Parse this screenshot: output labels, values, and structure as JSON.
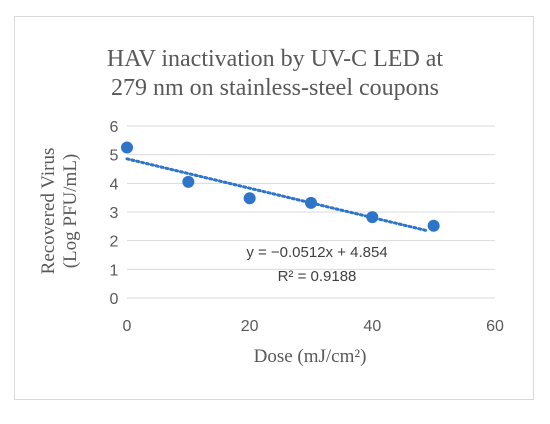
{
  "chart_data": {
    "type": "scatter",
    "title_lines": [
      "HAV inactivation by UV-C LED at",
      "279 nm on stainless-steel coupons"
    ],
    "xlabel": "Dose (mJ/cm²)",
    "ylabel_lines": [
      "Recovered Virus",
      "(Log PFU/mL)"
    ],
    "xlim": [
      0,
      60
    ],
    "ylim": [
      0,
      6
    ],
    "x_ticks": [
      0,
      20,
      40,
      60
    ],
    "y_ticks": [
      0,
      1,
      2,
      3,
      4,
      5,
      6
    ],
    "grid": "horizontal",
    "points": [
      {
        "x": 0,
        "y": 5.25
      },
      {
        "x": 10,
        "y": 4.05
      },
      {
        "x": 20,
        "y": 3.48
      },
      {
        "x": 30,
        "y": 3.32
      },
      {
        "x": 40,
        "y": 2.82
      },
      {
        "x": 50,
        "y": 2.52
      }
    ],
    "trendline": {
      "type": "linear",
      "slope": -0.0512,
      "intercept": 4.854,
      "x_range": [
        0,
        49
      ],
      "equation_label": "y = −0.0512x + 4.854",
      "r2_label": "R² = 0.9188"
    },
    "colors": {
      "marker": "#2e75c9",
      "trendline": "#2e75c9",
      "grid": "#d9d9d9",
      "text": "#595959",
      "title": "#595959"
    }
  }
}
